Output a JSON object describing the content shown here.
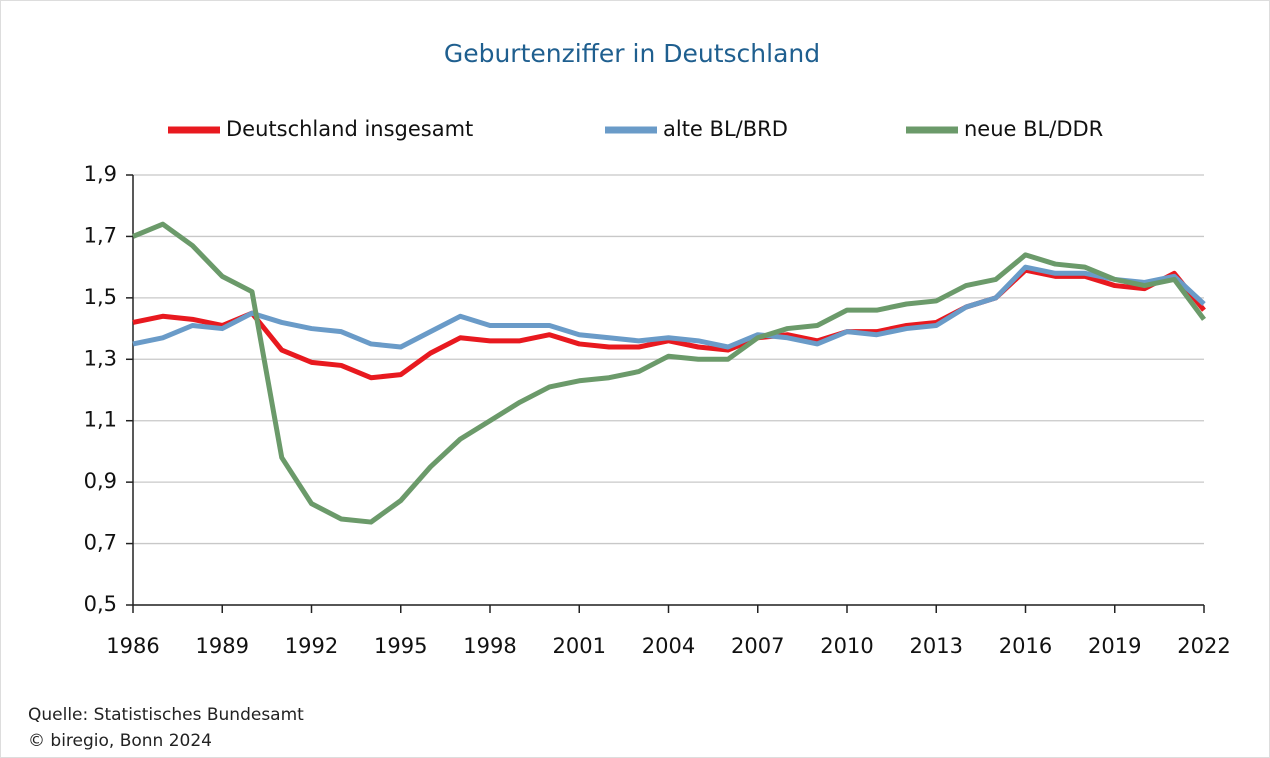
{
  "chart_data": {
    "type": "line",
    "title": "Geburtenziffer in Deutschland",
    "x": [
      1986,
      1987,
      1988,
      1989,
      1990,
      1991,
      1992,
      1993,
      1994,
      1995,
      1996,
      1997,
      1998,
      1999,
      2000,
      2001,
      2002,
      2003,
      2004,
      2005,
      2006,
      2007,
      2008,
      2009,
      2010,
      2011,
      2012,
      2013,
      2014,
      2015,
      2016,
      2017,
      2018,
      2019,
      2020,
      2021,
      2022
    ],
    "series": [
      {
        "name": "Deutschland insgesamt",
        "color": "#e8191f",
        "values": [
          1.42,
          1.44,
          1.43,
          1.41,
          1.45,
          1.33,
          1.29,
          1.28,
          1.24,
          1.25,
          1.32,
          1.37,
          1.36,
          1.36,
          1.38,
          1.35,
          1.34,
          1.34,
          1.36,
          1.34,
          1.33,
          1.37,
          1.38,
          1.36,
          1.39,
          1.39,
          1.41,
          1.42,
          1.47,
          1.5,
          1.59,
          1.57,
          1.57,
          1.54,
          1.53,
          1.58,
          1.46
        ]
      },
      {
        "name": "alte BL/BRD",
        "color": "#6a9bc8",
        "values": [
          1.35,
          1.37,
          1.41,
          1.4,
          1.45,
          1.42,
          1.4,
          1.39,
          1.35,
          1.34,
          1.39,
          1.44,
          1.41,
          1.41,
          1.41,
          1.38,
          1.37,
          1.36,
          1.37,
          1.36,
          1.34,
          1.38,
          1.37,
          1.35,
          1.39,
          1.38,
          1.4,
          1.41,
          1.47,
          1.5,
          1.6,
          1.58,
          1.58,
          1.56,
          1.55,
          1.57,
          1.48
        ]
      },
      {
        "name": "neue BL/DDR",
        "color": "#6b9a6a",
        "values": [
          1.7,
          1.74,
          1.67,
          1.57,
          1.52,
          0.98,
          0.83,
          0.78,
          0.77,
          0.84,
          0.95,
          1.04,
          1.1,
          1.16,
          1.21,
          1.23,
          1.24,
          1.26,
          1.31,
          1.3,
          1.3,
          1.37,
          1.4,
          1.41,
          1.46,
          1.46,
          1.48,
          1.49,
          1.54,
          1.56,
          1.64,
          1.61,
          1.6,
          1.56,
          1.54,
          1.56,
          1.43
        ]
      }
    ],
    "xlim": [
      1986,
      2022
    ],
    "xticks": [
      1986,
      1989,
      1992,
      1995,
      1998,
      2001,
      2004,
      2007,
      2010,
      2013,
      2016,
      2019,
      2022
    ],
    "ylim": [
      0.5,
      1.9
    ],
    "yticks": [
      {
        "value": 0.5,
        "label": "0,5"
      },
      {
        "value": 0.7,
        "label": "0,7"
      },
      {
        "value": 0.9,
        "label": "0,9"
      },
      {
        "value": 1.1,
        "label": "1,1"
      },
      {
        "value": 1.3,
        "label": "1,3"
      },
      {
        "value": 1.5,
        "label": "1,5"
      },
      {
        "value": 1.7,
        "label": "1,7"
      },
      {
        "value": 1.9,
        "label": "1,9"
      }
    ],
    "grid": true,
    "legend": "top",
    "source": "Quelle: Statistisches Bundesamt",
    "copyright": "© biregio, Bonn 2024"
  }
}
